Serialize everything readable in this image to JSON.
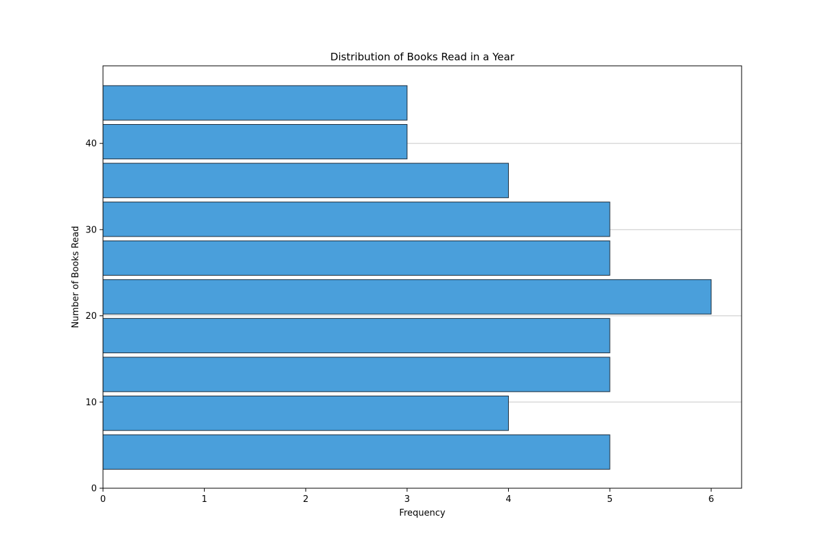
{
  "chart_data": {
    "type": "bar",
    "orientation": "horizontal",
    "title": "Distribution of Books Read in a Year",
    "xlabel": "Frequency",
    "ylabel": "Number of Books Read",
    "xlim": [
      0,
      6.3
    ],
    "ylim": [
      0,
      49
    ],
    "xticks": [
      0,
      1,
      2,
      3,
      4,
      5,
      6
    ],
    "yticks": [
      0,
      10,
      20,
      30,
      40
    ],
    "grid": {
      "axis": "y",
      "on": true
    },
    "bins": [
      {
        "start": 2.2,
        "end": 6.2,
        "value": 5
      },
      {
        "start": 6.7,
        "end": 10.7,
        "value": 4
      },
      {
        "start": 11.2,
        "end": 15.2,
        "value": 5
      },
      {
        "start": 15.7,
        "end": 19.7,
        "value": 5
      },
      {
        "start": 20.2,
        "end": 24.2,
        "value": 6
      },
      {
        "start": 24.7,
        "end": 28.7,
        "value": 5
      },
      {
        "start": 29.2,
        "end": 33.2,
        "value": 5
      },
      {
        "start": 33.7,
        "end": 37.7,
        "value": 4
      },
      {
        "start": 38.2,
        "end": 42.2,
        "value": 3
      },
      {
        "start": 42.7,
        "end": 46.7,
        "value": 3
      }
    ],
    "colors": {
      "bar_fill": "#4a9fdb",
      "bar_edge": "#1c2b3a",
      "grid": "#c8c8c8",
      "axis": "#000000"
    }
  }
}
